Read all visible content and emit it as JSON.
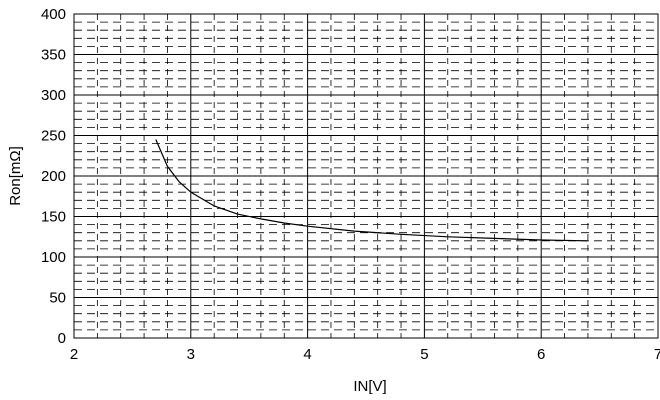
{
  "chart_data": {
    "type": "line",
    "title": "",
    "xlabel": "IN[V]",
    "ylabel": "Ron[mΩ]",
    "xlim": [
      2,
      7
    ],
    "ylim": [
      0,
      400
    ],
    "x_ticks": [
      "2",
      "3",
      "4",
      "5",
      "6",
      "7"
    ],
    "y_ticks": [
      "0",
      "50",
      "100",
      "150",
      "200",
      "250",
      "300",
      "350",
      "400"
    ],
    "grid": true,
    "legend": "none",
    "series": [
      {
        "color": "#000000",
        "x": [
          2.7,
          2.8,
          2.9,
          3.0,
          3.2,
          3.4,
          3.6,
          3.8,
          4.0,
          4.4,
          4.8,
          5.2,
          5.6,
          6.0,
          6.4
        ],
        "y": [
          245,
          212,
          193,
          180,
          163,
          153,
          147,
          142,
          138,
          132,
          128,
          125,
          123,
          121,
          120
        ]
      }
    ]
  }
}
